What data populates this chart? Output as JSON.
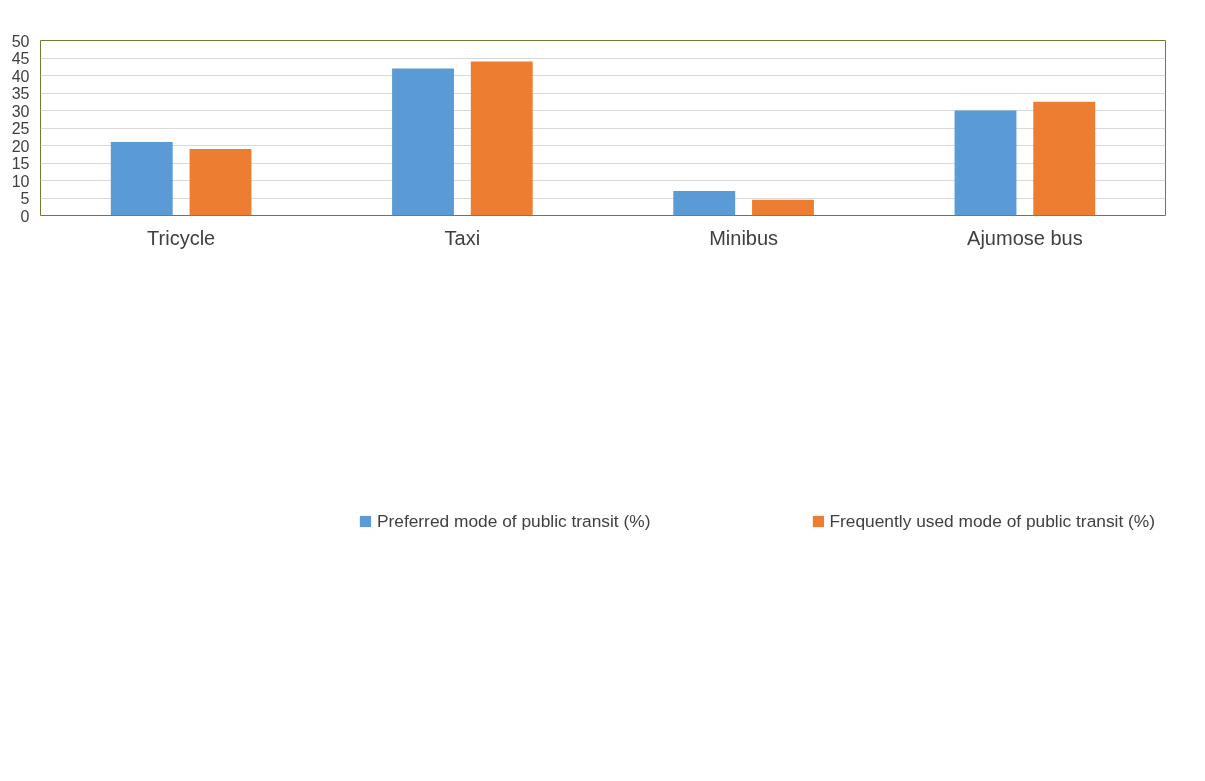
{
  "chart_data": {
    "type": "bar",
    "categories": [
      "Tricycle",
      "Taxi",
      "Minibus",
      "Ajumose bus"
    ],
    "series": [
      {
        "name": "Preferred mode of public transit (%)",
        "color": "#5b9bd5",
        "values": [
          21,
          42,
          7,
          30
        ]
      },
      {
        "name": "Frequently used mode of public transit (%)",
        "color": "#ed7d31",
        "values": [
          19,
          44,
          4.5,
          32.5
        ]
      }
    ],
    "ylim": [
      0,
      50
    ],
    "yticks": [
      0,
      5,
      10,
      15,
      20,
      25,
      30,
      35,
      40,
      45,
      50
    ],
    "grid": "y",
    "legend": "bottom"
  }
}
